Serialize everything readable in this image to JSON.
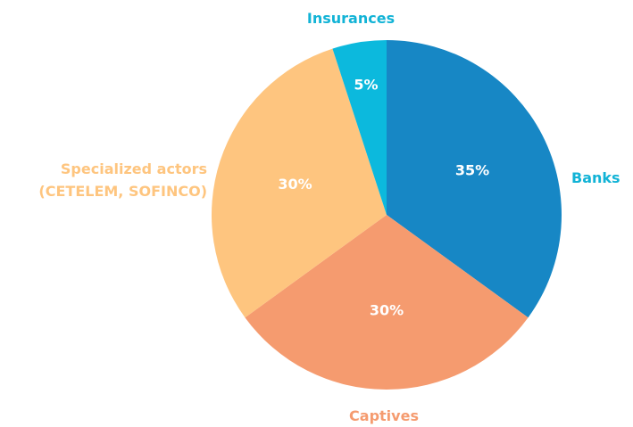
{
  "chart_data": {
    "type": "pie",
    "categories": [
      "Banks",
      "Captives",
      "Specialized actors (CETELEM, SOFINCO)",
      "Insurances"
    ],
    "values": [
      35,
      30,
      30,
      5
    ],
    "value_labels": [
      "35%",
      "30%",
      "30%",
      "5%"
    ],
    "colors": [
      "#1787c5",
      "#f59b6f",
      "#fec57f",
      "#0cb9dd"
    ],
    "label_colors": [
      "#12b3d6",
      "#f59b6f",
      "#fec57f",
      "#12b3d6"
    ]
  }
}
